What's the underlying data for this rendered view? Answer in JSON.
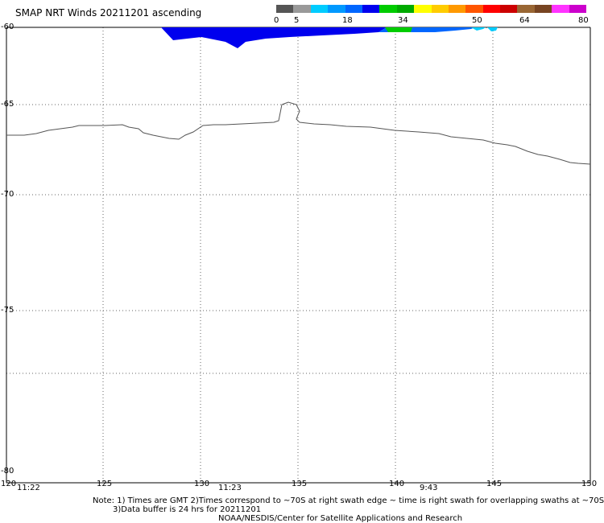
{
  "title": "SMAP NRT Winds 20211201 ascending",
  "colorbar": {
    "colors": [
      "#555555",
      "#999999",
      "#00ccff",
      "#0099ff",
      "#0066ff",
      "#0000ee",
      "#00cc00",
      "#00aa00",
      "#ffff00",
      "#ffcc00",
      "#ff9900",
      "#ff5500",
      "#ff0000",
      "#cc0000",
      "#996633",
      "#774422",
      "#ff33ff",
      "#cc00cc"
    ],
    "labels": [
      "0",
      "5",
      "18",
      "34",
      "50",
      "64",
      "80"
    ]
  },
  "axes": {
    "lon_ticks": [
      "120",
      "125",
      "130",
      "135",
      "140",
      "145",
      "150"
    ],
    "lat_ticks": [
      "-60",
      "-65",
      "-70",
      "-75",
      "-80"
    ]
  },
  "time_labels": [
    "11:22",
    "11:23",
    "9:43"
  ],
  "notes": {
    "line1": "Note: 1) Times are GMT 2)Times correspond to ~70S at right swath edge ~ time is right swath for overlapping swaths at ~70S",
    "line2": "3)Data buffer is 24 hrs for 20211201",
    "line3": "NOAA/NESDIS/Center for Satellite Applications and Research"
  },
  "swath_colors": {
    "strong": "#0000ee",
    "mid": "#0066ff",
    "light": "#00ccff",
    "green": "#00cc00"
  },
  "coast_color": "#555555"
}
